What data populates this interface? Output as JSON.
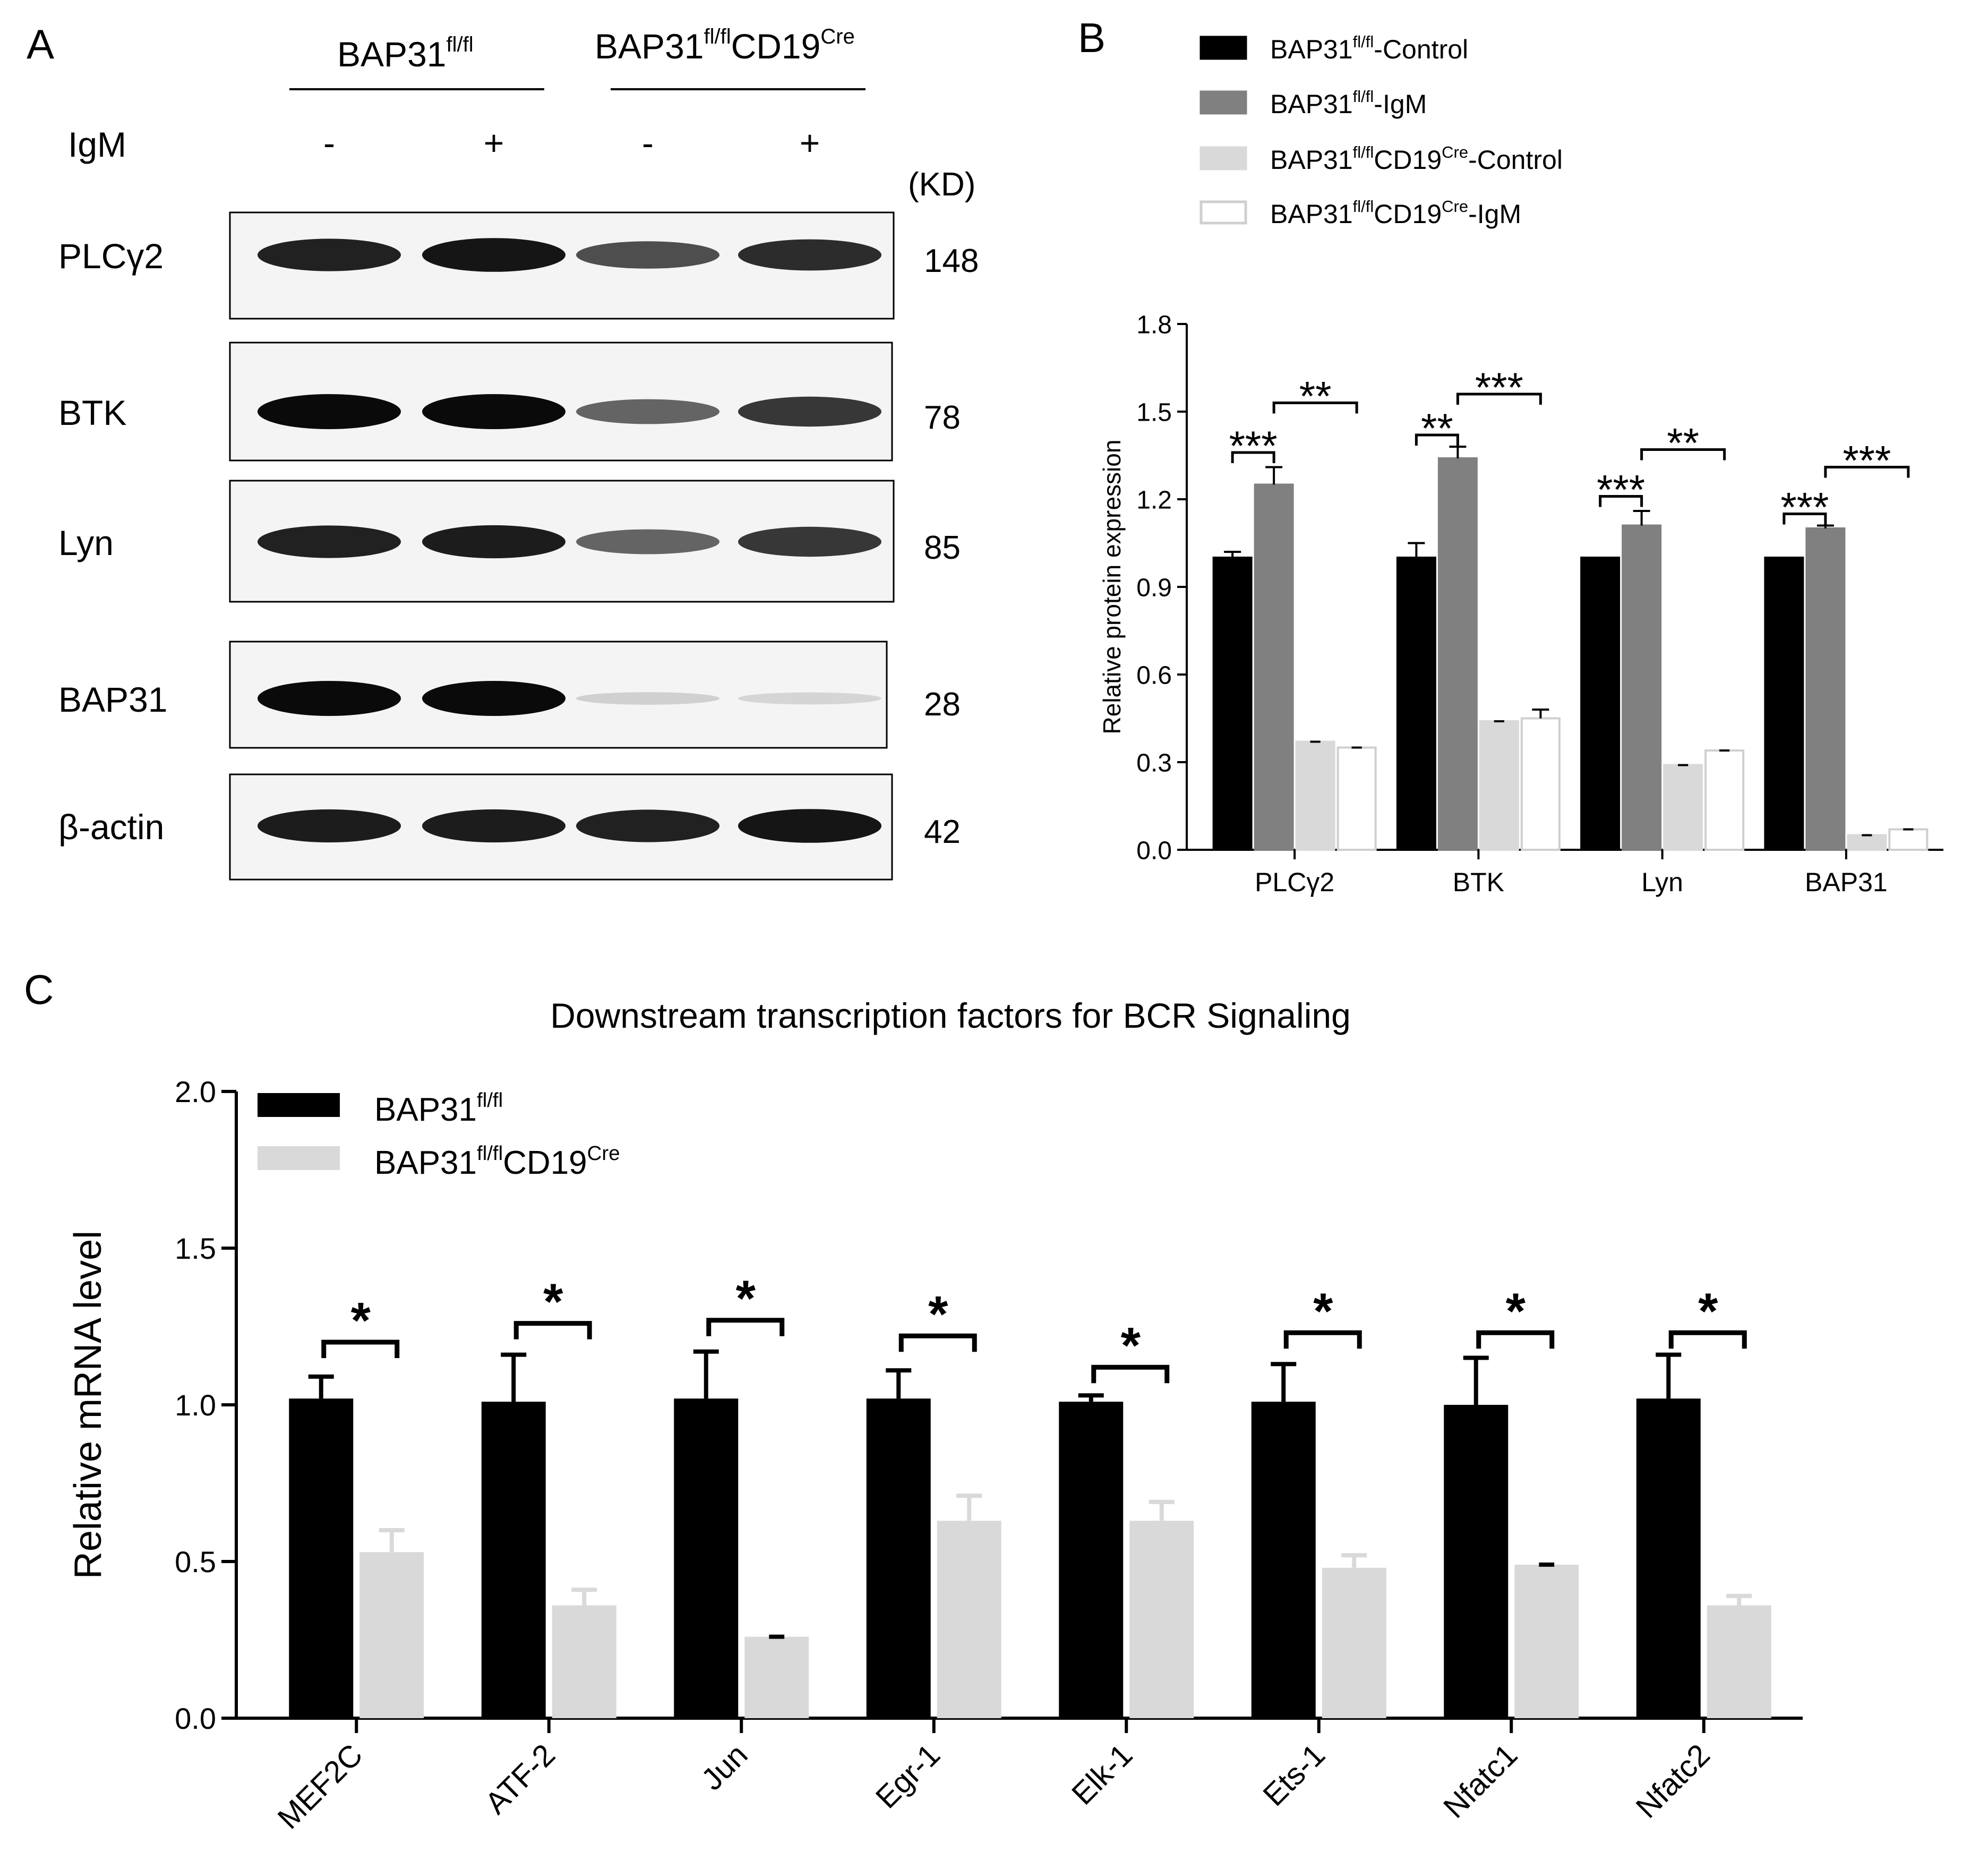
{
  "panels": {
    "a": {
      "letter": "A",
      "group_wt": {
        "base": "BAP31",
        "sup": "fl/fl",
        "rest": "",
        "sup2": ""
      },
      "group_ko": {
        "base": "BAP31",
        "sup": "fl/fl",
        "rest": "CD19",
        "sup2": "Cre"
      },
      "treatment_label": "IgM",
      "lane_signs": [
        "-",
        "+",
        "-",
        "+"
      ],
      "kd_label": "(KD)",
      "blots": [
        {
          "name": "PLCγ2",
          "kd": "148",
          "intensity": [
            0.9,
            0.95,
            0.7,
            0.85
          ]
        },
        {
          "name": "BTK",
          "kd": "78",
          "intensity": [
            1.0,
            1.0,
            0.6,
            0.8
          ]
        },
        {
          "name": "Lyn",
          "kd": "85",
          "intensity": [
            0.9,
            0.92,
            0.6,
            0.8
          ]
        },
        {
          "name": "BAP31",
          "kd": "28",
          "intensity": [
            1.0,
            1.0,
            0.12,
            0.1
          ]
        },
        {
          "name": "β-actin",
          "kd": "42",
          "intensity": [
            0.92,
            0.92,
            0.9,
            0.95
          ]
        }
      ]
    },
    "b": {
      "letter": "B"
    },
    "c": {
      "letter": "C"
    }
  },
  "chart_data": [
    {
      "type": "bar",
      "panel": "B",
      "title": "",
      "xlabel": "",
      "ylabel": "Relative protein expression",
      "ylim": [
        0,
        1.8
      ],
      "yticks": [
        "0.0",
        "0.3",
        "0.6",
        "0.9",
        "1.2",
        "1.5",
        "1.8"
      ],
      "categories": [
        "PLCγ2",
        "BTK",
        "Lyn",
        "BAP31"
      ],
      "legend_position": "top",
      "series": [
        {
          "name": {
            "base": "BAP31",
            "sup": "fl/fl",
            "rest": "-Control",
            "sup2": "",
            "tail": ""
          },
          "color": "#000000",
          "outline": "#000000",
          "values": [
            1.0,
            1.0,
            1.0,
            1.0
          ],
          "errors": [
            0.02,
            0.05,
            0.0,
            0.0
          ]
        },
        {
          "name": {
            "base": "BAP31",
            "sup": "fl/fl",
            "rest": "-IgM",
            "sup2": "",
            "tail": ""
          },
          "color": "#808080",
          "outline": "#808080",
          "values": [
            1.25,
            1.34,
            1.11,
            1.1
          ],
          "errors": [
            0.06,
            0.04,
            0.05,
            0.01
          ]
        },
        {
          "name": {
            "base": "BAP31",
            "sup": "fl/fl",
            "rest": "CD19",
            "sup2": "Cre",
            "tail": "-Control"
          },
          "color": "#d9d9d9",
          "outline": "#d9d9d9",
          "values": [
            0.37,
            0.44,
            0.29,
            0.05
          ],
          "errors": [
            0.0,
            0.0,
            0.0,
            0.0
          ]
        },
        {
          "name": {
            "base": "BAP31",
            "sup": "fl/fl",
            "rest": "CD19",
            "sup2": "Cre",
            "tail": "-IgM"
          },
          "color": "#ffffff",
          "outline": "#cfcfcf",
          "values": [
            0.35,
            0.45,
            0.34,
            0.07
          ],
          "errors": [
            0.0,
            0.03,
            0.0,
            0.0
          ]
        }
      ],
      "annotations": [
        {
          "category": "PLCγ2",
          "from": 0,
          "to": 1,
          "label": "***",
          "y": 1.36
        },
        {
          "category": "PLCγ2",
          "from": 1,
          "to": 3,
          "label": "**",
          "y": 1.53
        },
        {
          "category": "BTK",
          "from": 0,
          "to": 1,
          "label": "**",
          "y": 1.42
        },
        {
          "category": "BTK",
          "from": 1,
          "to": 3,
          "label": "***",
          "y": 1.56
        },
        {
          "category": "Lyn",
          "from": 0,
          "to": 1,
          "label": "***",
          "y": 1.21
        },
        {
          "category": "Lyn",
          "from": 1,
          "to": 3,
          "label": "**",
          "y": 1.37
        },
        {
          "category": "BAP31",
          "from": 0,
          "to": 1,
          "label": "***",
          "y": 1.15
        },
        {
          "category": "BAP31",
          "from": 1,
          "to": 3,
          "label": "***",
          "y": 1.31
        }
      ]
    },
    {
      "type": "bar",
      "panel": "C",
      "title": "Downstream transcription factors for BCR Signaling",
      "xlabel": "",
      "ylabel": "Relative mRNA level",
      "ylim": [
        0,
        2.0
      ],
      "yticks": [
        "0.0",
        "0.5",
        "1.0",
        "1.5",
        "2.0"
      ],
      "categories": [
        "MEF2C",
        "ATF-2",
        "Jun",
        "Egr-1",
        "Elk-1",
        "Ets-1",
        "Nfatc1",
        "Nfatc2"
      ],
      "legend_position": "top-left",
      "series": [
        {
          "name": {
            "base": "BAP31",
            "sup": "fl/fl",
            "rest": "",
            "sup2": "",
            "tail": ""
          },
          "color": "#000000",
          "values": [
            1.02,
            1.01,
            1.02,
            1.02,
            1.01,
            1.01,
            1.0,
            1.02
          ],
          "errors": [
            0.07,
            0.15,
            0.15,
            0.09,
            0.02,
            0.12,
            0.15,
            0.14
          ]
        },
        {
          "name": {
            "base": "BAP31",
            "sup": "fl/fl",
            "rest": "CD19",
            "sup2": "Cre",
            "tail": ""
          },
          "color": "#d9d9d9",
          "values": [
            0.53,
            0.36,
            0.26,
            0.63,
            0.63,
            0.48,
            0.49,
            0.36
          ],
          "errors": [
            0.07,
            0.05,
            0.0,
            0.08,
            0.06,
            0.04,
            0.0,
            0.03
          ]
        }
      ],
      "annotations": [
        {
          "category": "MEF2C",
          "label": "*",
          "y": 1.2
        },
        {
          "category": "ATF-2",
          "label": "*",
          "y": 1.26
        },
        {
          "category": "Jun",
          "label": "*",
          "y": 1.27
        },
        {
          "category": "Egr-1",
          "label": "*",
          "y": 1.22
        },
        {
          "category": "Elk-1",
          "label": "*",
          "y": 1.12
        },
        {
          "category": "Ets-1",
          "label": "*",
          "y": 1.23
        },
        {
          "category": "Nfatc1",
          "label": "*",
          "y": 1.23
        },
        {
          "category": "Nfatc2",
          "label": "*",
          "y": 1.23
        }
      ]
    }
  ]
}
